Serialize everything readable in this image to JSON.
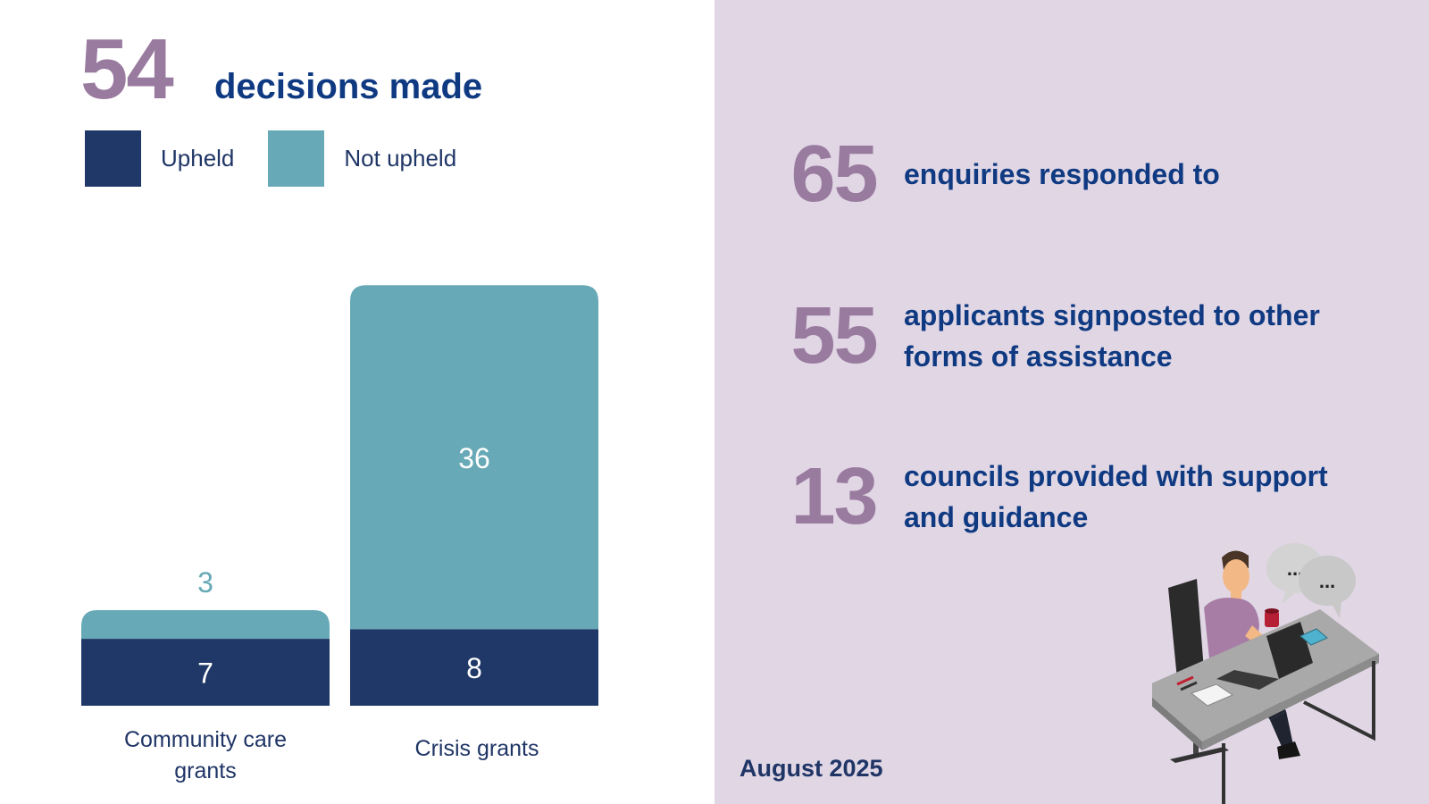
{
  "headline": {
    "number": "54",
    "text": "decisions made"
  },
  "legend": [
    {
      "label": "Upheld",
      "color": "#203868"
    },
    {
      "label": "Not upheld",
      "color": "#67a9b6"
    }
  ],
  "chart_data": {
    "type": "bar",
    "stacked": true,
    "categories": [
      "Community care grants",
      "Crisis grants"
    ],
    "category_lines": [
      [
        "Community care",
        "grants"
      ],
      [
        "Crisis grants"
      ]
    ],
    "series": [
      {
        "name": "Upheld",
        "values": [
          7,
          8
        ],
        "color": "#203868"
      },
      {
        "name": "Not upheld",
        "values": [
          3,
          36
        ],
        "color": "#67a9b6"
      }
    ],
    "labels": {
      "upheld": [
        "7",
        "8"
      ],
      "not_upheld": [
        "3",
        "36"
      ]
    },
    "ylim": [
      0,
      44
    ]
  },
  "stats": [
    {
      "number": "65",
      "text": "enquiries responded to"
    },
    {
      "number": "55",
      "text": "applicants signposted to other forms of assistance"
    },
    {
      "number": "13",
      "text": "councils provided with support and guidance"
    }
  ],
  "date": "August 2025",
  "icons": {
    "speech_bubble_1": "...",
    "speech_bubble_2": "..."
  },
  "colors": {
    "accent_number": "#9a7ba0",
    "heading_blue": "#0f3a82",
    "right_panel_bg": "#e0d6e4"
  }
}
